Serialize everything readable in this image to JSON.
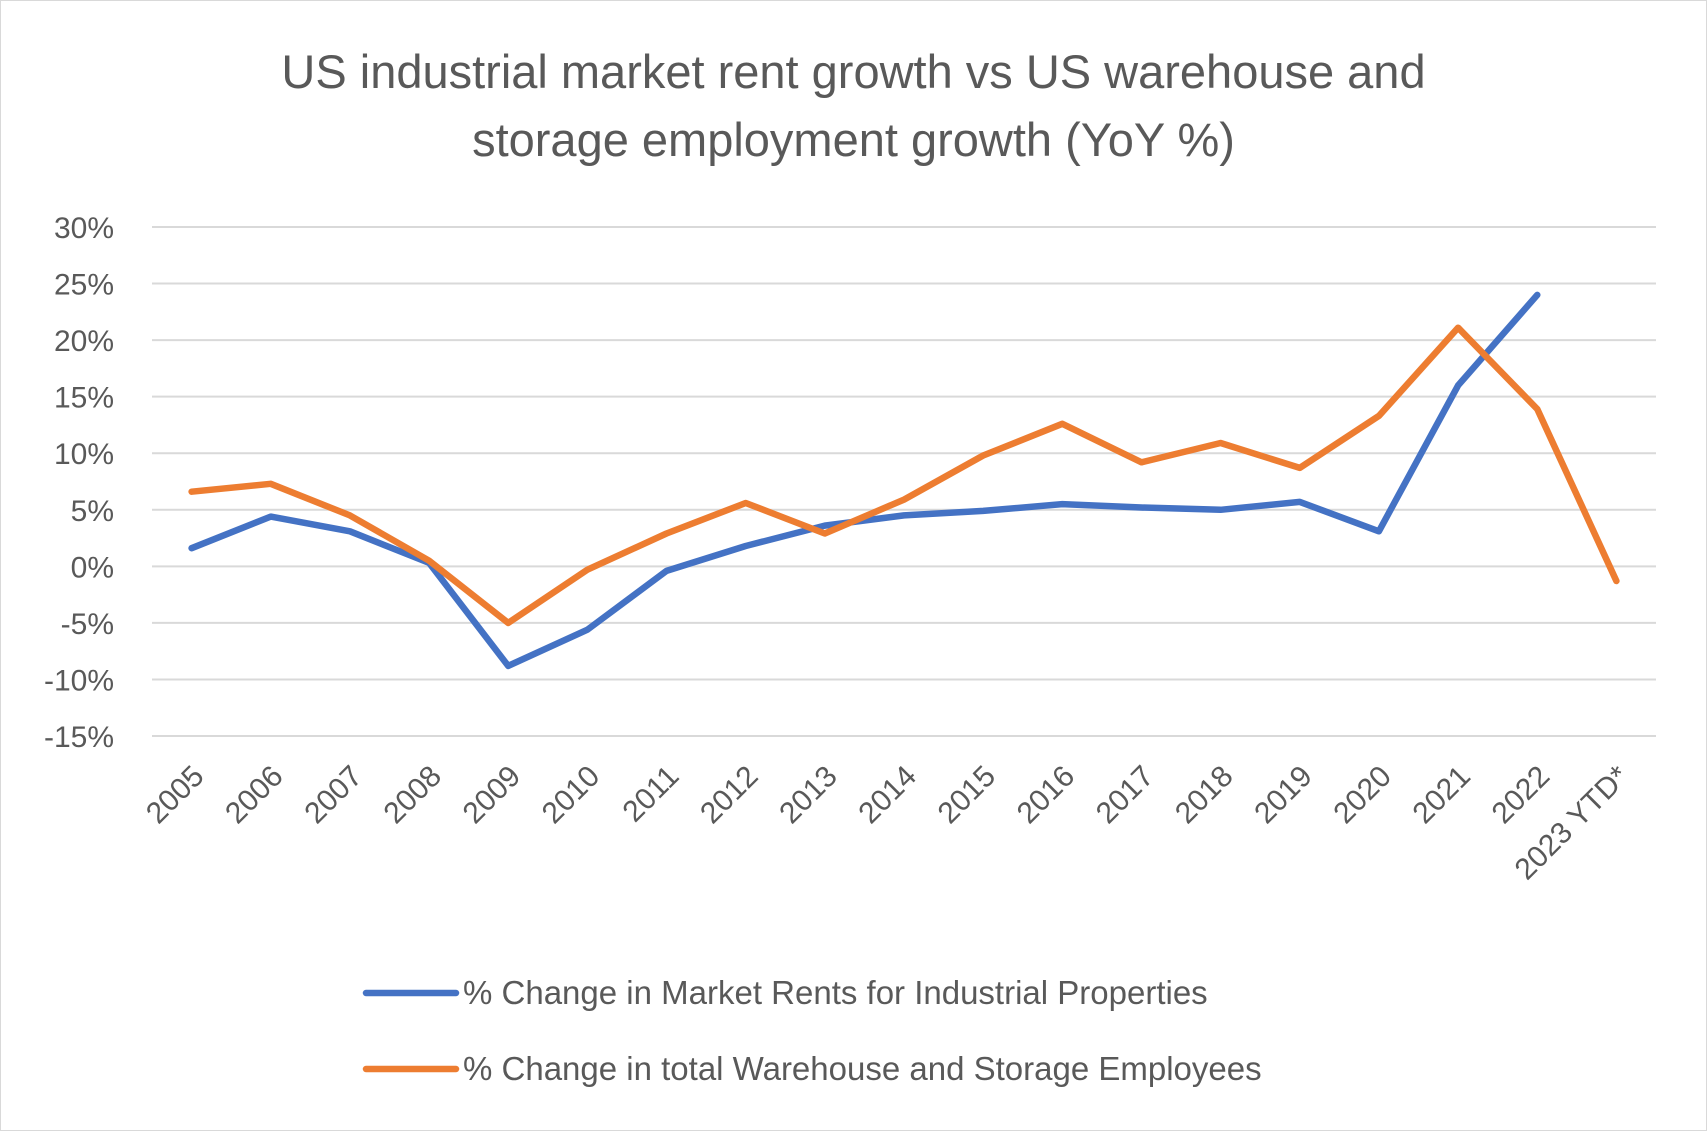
{
  "title_lines": [
    "US industrial market rent growth vs US warehouse and",
    "storage employment growth (YoY %)"
  ],
  "chart_data": {
    "type": "line",
    "title": "US industrial market rent growth vs US warehouse and storage employment growth (YoY %)",
    "xlabel": "",
    "ylabel": "",
    "ylim": [
      -15,
      30
    ],
    "y_ticks": [
      30,
      25,
      20,
      15,
      10,
      5,
      0,
      -5,
      -10,
      -15
    ],
    "y_tick_labels": [
      "30%",
      "25%",
      "20%",
      "15%",
      "10%",
      "5%",
      "0%",
      "-5%",
      "-10%",
      "-15%"
    ],
    "grid": true,
    "legend_position": "bottom",
    "categories": [
      "2005",
      "2006",
      "2007",
      "2008",
      "2009",
      "2010",
      "2011",
      "2012",
      "2013",
      "2014",
      "2015",
      "2016",
      "2017",
      "2018",
      "2019",
      "2020",
      "2021",
      "2022",
      "2023 YTD*"
    ],
    "series": [
      {
        "name": "% Change in Market Rents for Industrial Properties",
        "color": "#4472c4",
        "values": [
          1.6,
          4.4,
          3.1,
          0.3,
          -8.8,
          -5.6,
          -0.4,
          1.8,
          3.6,
          4.5,
          4.9,
          5.5,
          5.2,
          5.0,
          5.7,
          3.1,
          16.0,
          24.0,
          null
        ]
      },
      {
        "name": "% Change in total Warehouse and Storage Employees",
        "color": "#ed7d31",
        "values": [
          6.6,
          7.3,
          4.5,
          0.5,
          -5.0,
          -0.3,
          2.9,
          5.6,
          2.9,
          5.9,
          9.8,
          12.6,
          9.2,
          10.9,
          8.7,
          13.3,
          21.1,
          13.9,
          -1.3
        ]
      }
    ]
  }
}
